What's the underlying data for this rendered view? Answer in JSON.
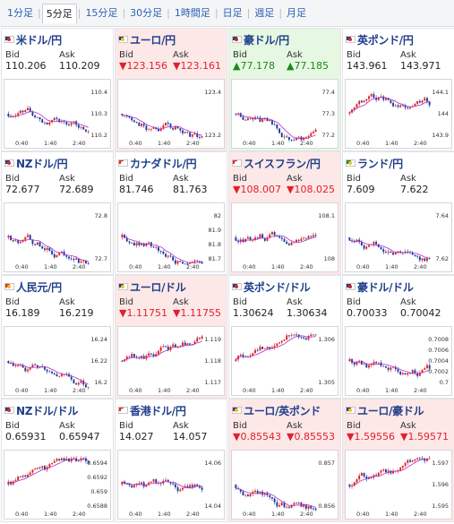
{
  "tabs": [
    {
      "label": "1分足",
      "active": false
    },
    {
      "label": "5分足",
      "active": true
    },
    {
      "label": "15分足",
      "active": false
    },
    {
      "label": "30分足",
      "active": false
    },
    {
      "label": "1時間足",
      "active": false
    },
    {
      "label": "日足",
      "active": false
    },
    {
      "label": "週足",
      "active": false
    },
    {
      "label": "月足",
      "active": false
    }
  ],
  "x_ticks": [
    "0:40",
    "1:40",
    "2:40"
  ],
  "bid_label": "Bid",
  "ask_label": "Ask",
  "colors": {
    "link": "#2b5fb4",
    "title": "#1f3f8a",
    "up": "#1a8a1a",
    "down": "#e0202a",
    "neg_bg": "#fde8e8",
    "pos_bg": "#e6f7e2",
    "candle_up": "#e02020",
    "candle_down": "#1c3c9c",
    "ma": "#b030c8"
  },
  "pairs": [
    {
      "name": "米ドル/円",
      "flag": "us",
      "bid": "110.206",
      "ask": "110.209",
      "state": "none",
      "arrow": "",
      "y_ticks": [
        "110.4",
        "110.3",
        "110.2"
      ],
      "trend": "down"
    },
    {
      "name": "ユーロ/円",
      "flag": "eu",
      "bid": "123.156",
      "ask": "123.161",
      "state": "neg",
      "arrow": "▼",
      "y_ticks": [
        "123.4",
        "123.2"
      ],
      "trend": "down"
    },
    {
      "name": "豪ドル/円",
      "flag": "au",
      "bid": "77.178",
      "ask": "77.185",
      "state": "pos",
      "arrow": "▲",
      "y_ticks": [
        "77.4",
        "77.3",
        "77.2"
      ],
      "trend": "down"
    },
    {
      "name": "英ポンド/円",
      "flag": "uk",
      "bid": "143.961",
      "ask": "143.971",
      "state": "none",
      "arrow": "",
      "y_ticks": [
        "144.1",
        "144",
        "143.9"
      ],
      "trend": "flat"
    },
    {
      "name": "NZドル/円",
      "flag": "nz",
      "bid": "72.677",
      "ask": "72.689",
      "state": "none",
      "arrow": "",
      "y_ticks": [
        "72.8",
        "72.7"
      ],
      "trend": "down"
    },
    {
      "name": "カナダドル/円",
      "flag": "ca",
      "bid": "81.746",
      "ask": "81.763",
      "state": "none",
      "arrow": "",
      "y_ticks": [
        "82",
        "81.9",
        "81.8",
        "81.7"
      ],
      "trend": "down"
    },
    {
      "name": "スイスフラン/円",
      "flag": "ch",
      "bid": "108.007",
      "ask": "108.025",
      "state": "neg",
      "arrow": "▼",
      "y_ticks": [
        "108.1",
        "108"
      ],
      "trend": "flat"
    },
    {
      "name": "ランド/円",
      "flag": "za",
      "bid": "7.609",
      "ask": "7.622",
      "state": "none",
      "arrow": "",
      "y_ticks": [
        "7.64",
        "7.62"
      ],
      "trend": "down"
    },
    {
      "name": "人民元/円",
      "flag": "cn",
      "bid": "16.189",
      "ask": "16.219",
      "state": "none",
      "arrow": "",
      "y_ticks": [
        "16.24",
        "16.22",
        "16.2"
      ],
      "trend": "down"
    },
    {
      "name": "ユーロ/ドル",
      "flag": "eu",
      "bid": "1.11751",
      "ask": "1.11755",
      "state": "neg",
      "arrow": "▼",
      "y_ticks": [
        "1.119",
        "1.118",
        "1.117"
      ],
      "trend": "flat"
    },
    {
      "name": "英ポンド/ドル",
      "flag": "uk",
      "bid": "1.30624",
      "ask": "1.30634",
      "state": "none",
      "arrow": "",
      "y_ticks": [
        "1.306",
        "1.305"
      ],
      "trend": "up"
    },
    {
      "name": "豪ドル/ドル",
      "flag": "au",
      "bid": "0.70033",
      "ask": "0.70042",
      "state": "none",
      "arrow": "",
      "y_ticks": [
        "0.7008",
        "0.7006",
        "0.7004",
        "0.7002",
        "0.7"
      ],
      "trend": "flat"
    },
    {
      "name": "NZドル/ドル",
      "flag": "nz",
      "bid": "0.65931",
      "ask": "0.65947",
      "state": "none",
      "arrow": "",
      "y_ticks": [
        "0.6594",
        "0.6592",
        "0.659",
        "0.6588"
      ],
      "trend": "flat"
    },
    {
      "name": "香港ドル/円",
      "flag": "hk",
      "bid": "14.027",
      "ask": "14.057",
      "state": "none",
      "arrow": "",
      "y_ticks": [
        "14.06",
        "14.04"
      ],
      "trend": "down"
    },
    {
      "name": "ユーロ/英ポンド",
      "flag": "eu",
      "bid": "0.85543",
      "ask": "0.85553",
      "state": "neg",
      "arrow": "▼",
      "y_ticks": [
        "0.857",
        "0.856"
      ],
      "trend": "down"
    },
    {
      "name": "ユーロ/豪ドル",
      "flag": "eu",
      "bid": "1.59556",
      "ask": "1.59571",
      "state": "neg",
      "arrow": "▼",
      "y_ticks": [
        "1.597",
        "1.596",
        "1.595"
      ],
      "trend": "flat"
    }
  ]
}
